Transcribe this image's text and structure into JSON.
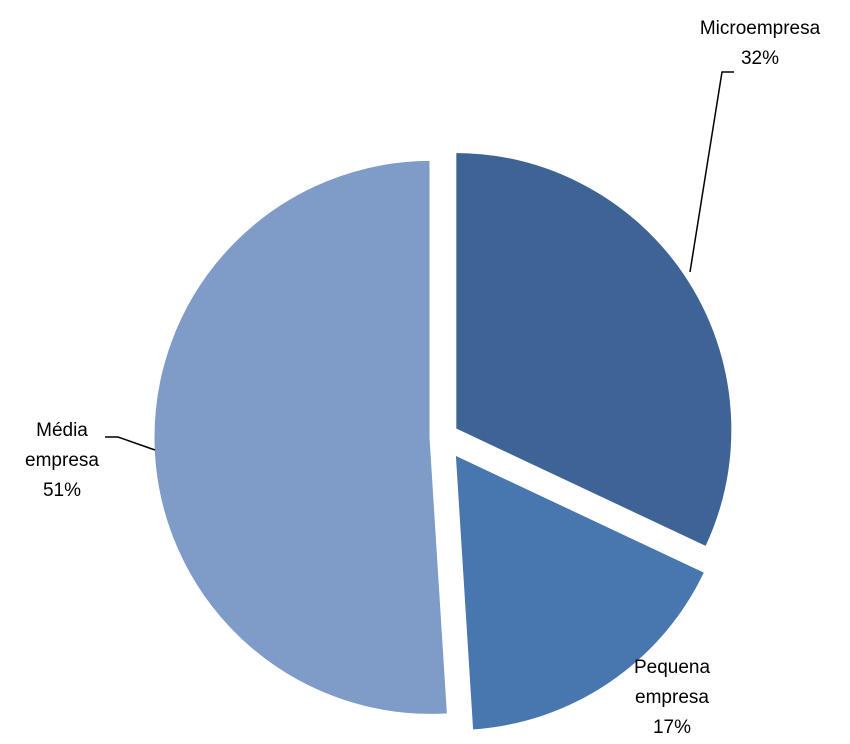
{
  "chart_data": {
    "type": "pie",
    "title": "",
    "categories": [
      "Microempresa",
      "Pequena empresa",
      "Média empresa"
    ],
    "values": [
      32,
      17,
      51
    ],
    "unit": "%",
    "start_angle_deg": 0,
    "direction": "clockwise",
    "exploded": true,
    "legend": "none",
    "slices": [
      {
        "name": "Microempresa",
        "value": 32,
        "label_lines": [
          "Microempresa",
          "32%"
        ],
        "color": "#3D6495"
      },
      {
        "name": "Pequena empresa",
        "value": 17,
        "label_lines": [
          "Pequena",
          "empresa",
          "17%"
        ],
        "color": "#4876AE"
      },
      {
        "name": "Média empresa",
        "value": 51,
        "label_lines": [
          "Média",
          "empresa",
          "51%"
        ],
        "color": "#7F9BC7"
      }
    ]
  }
}
